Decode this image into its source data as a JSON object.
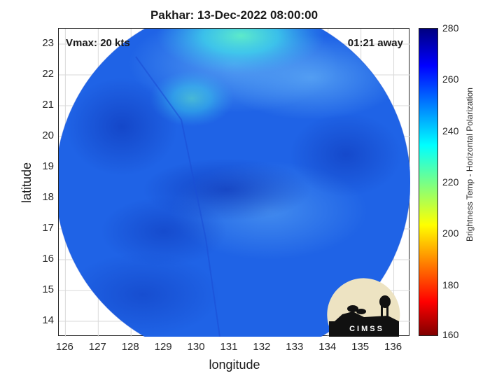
{
  "title": "Pakhar: 13-Dec-2022 08:00:00",
  "vmax_label": "Vmax: 20 kts",
  "time_label": "01:21 away",
  "xlabel": "longitude",
  "ylabel": "latitude",
  "colorbar_label": "Brightness Temp - Horizontal Polarization",
  "logo_text": "CIMSS",
  "colors": {
    "swath_base": "#1f63e6",
    "swath_dark": "#0f3cc4",
    "swath_light": "#4fb0f2",
    "swath_cyan": "#3ee0e8"
  },
  "chart_data": {
    "type": "heatmap",
    "title": "Pakhar: 13-Dec-2022 08:00:00",
    "xlabel": "longitude",
    "ylabel": "latitude",
    "xlim": [
      125.8,
      136.5
    ],
    "ylim": [
      13.5,
      23.5
    ],
    "xticks": [
      "126",
      "127",
      "128",
      "129",
      "130",
      "131",
      "132",
      "133",
      "134",
      "135",
      "136"
    ],
    "yticks": [
      "14",
      "15",
      "16",
      "17",
      "18",
      "19",
      "20",
      "21",
      "22",
      "23"
    ],
    "grid": true,
    "colorbar": {
      "label": "Brightness Temp - Horizontal Polarization",
      "range": [
        160,
        280
      ],
      "ticks": [
        "160",
        "180",
        "200",
        "220",
        "240",
        "260",
        "280"
      ],
      "colormap": "jet"
    },
    "swath": {
      "center_lon": 131.1,
      "center_lat": 18.5,
      "radius_deg": 5.4
    }
  }
}
